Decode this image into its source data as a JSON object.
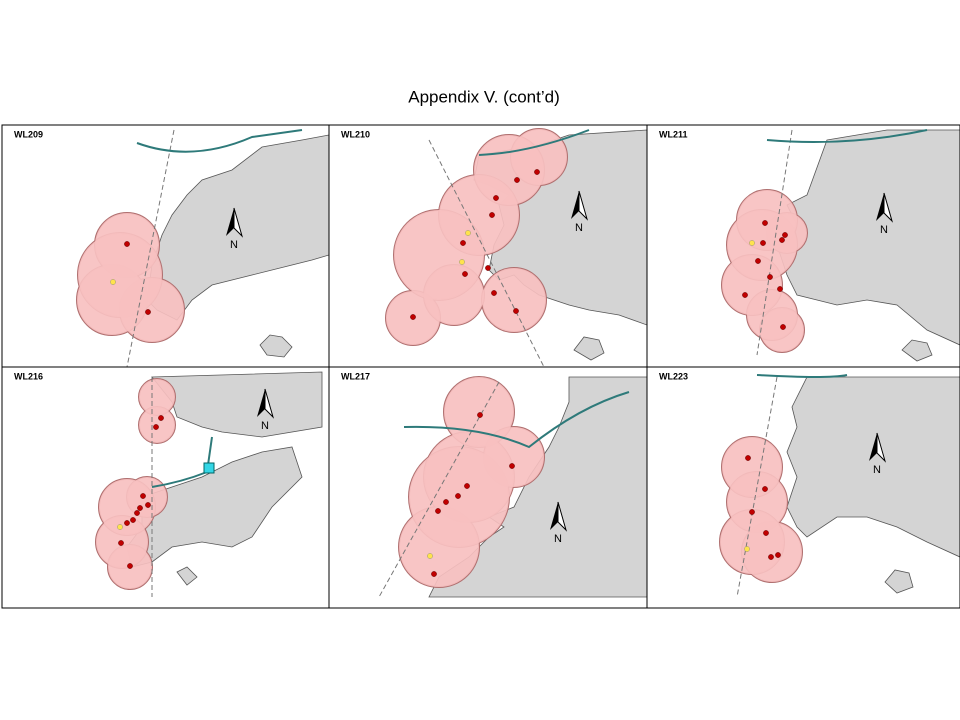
{
  "title": "Appendix V.  (cont’d)",
  "panels": [
    {
      "label": "WL209",
      "north": "N"
    },
    {
      "label": "WL210",
      "north": "N"
    },
    {
      "label": "WL211",
      "north": "N"
    },
    {
      "label": "WL216",
      "north": "N"
    },
    {
      "label": "WL217",
      "north": "N"
    },
    {
      "label": "WL223",
      "north": "N"
    }
  ]
}
